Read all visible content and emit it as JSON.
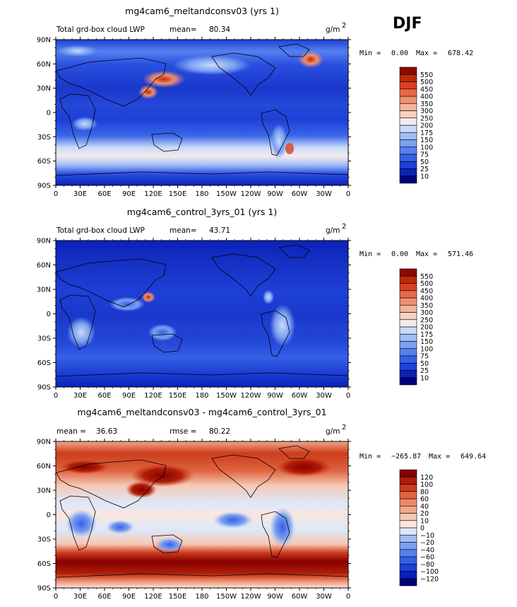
{
  "season_label": "DJF",
  "units": "g/m",
  "units_sup": "2",
  "lat_ticks": [
    "90N",
    "60N",
    "30N",
    "0",
    "30S",
    "60S",
    "90S"
  ],
  "lon_ticks": [
    "0",
    "30E",
    "60E",
    "90E",
    "120E",
    "150E",
    "180",
    "150W",
    "120W",
    "90W",
    "60W",
    "30W",
    "0"
  ],
  "chart_data": [
    {
      "type": "heatmap",
      "title": "mg4cam6_meltandconsv03 (yrs 1)",
      "left_label": "Total grd-box cloud LWP",
      "stat_label": "mean=",
      "stat_value": "80.34",
      "min_label": "Min =",
      "min_value": "0.00",
      "max_label": "Max =",
      "max_value": "678.42",
      "colorbar_levels": [
        "10",
        "25",
        "50",
        "75",
        "100",
        "150",
        "175",
        "200",
        "250",
        "300",
        "350",
        "400",
        "450",
        "500",
        "550"
      ],
      "colorbar_colors": [
        "#00007a",
        "#0a22b8",
        "#1e40d6",
        "#3560e6",
        "#5580ee",
        "#7aa0f2",
        "#a0bef6",
        "#c8daf8",
        "#f4ecec",
        "#f6d2c0",
        "#f4b49a",
        "#f09070",
        "#e8684a",
        "#dc4020",
        "#c02808",
        "#8a0a00"
      ],
      "xlim": [
        0,
        360
      ],
      "ylim": [
        -90,
        90
      ]
    },
    {
      "type": "heatmap",
      "title": "mg4cam6_control_3yrs_01 (yrs 1)",
      "left_label": "Total grd-box cloud LWP",
      "stat_label": "mean=",
      "stat_value": "43.71",
      "min_label": "Min =",
      "min_value": "0.00",
      "max_label": "Max =",
      "max_value": "571.46",
      "colorbar_levels": [
        "10",
        "25",
        "50",
        "75",
        "100",
        "150",
        "175",
        "200",
        "250",
        "300",
        "350",
        "400",
        "450",
        "500",
        "550"
      ],
      "colorbar_colors": [
        "#00007a",
        "#0a22b8",
        "#1e40d6",
        "#3560e6",
        "#5580ee",
        "#7aa0f2",
        "#a0bef6",
        "#c8daf8",
        "#f4ecec",
        "#f6d2c0",
        "#f4b49a",
        "#f09070",
        "#e8684a",
        "#dc4020",
        "#c02808",
        "#8a0a00"
      ],
      "xlim": [
        0,
        360
      ],
      "ylim": [
        -90,
        90
      ]
    },
    {
      "type": "heatmap",
      "title": "mg4cam6_meltandconsv03 - mg4cam6_control_3yrs_01",
      "left_label": "mean =",
      "left_value": "36.63",
      "stat_label": "rmse =",
      "stat_value": "80.22",
      "min_label": "Min =",
      "min_value": "−265.87",
      "max_label": "Max =",
      "max_value": "649.64",
      "colorbar_levels": [
        "−120",
        "−100",
        "−80",
        "−60",
        "−40",
        "−20",
        "−10",
        "0",
        "10",
        "20",
        "40",
        "60",
        "80",
        "100",
        "120"
      ],
      "colorbar_colors": [
        "#00007a",
        "#0a22b8",
        "#1e40d6",
        "#3560e6",
        "#5580ee",
        "#7aa0f2",
        "#a0bef6",
        "#dce8fa",
        "#fbe6e0",
        "#f6c8b4",
        "#f2a88c",
        "#ec8866",
        "#e06440",
        "#cc3c1c",
        "#b01e08",
        "#880000"
      ],
      "xlim": [
        0,
        360
      ],
      "ylim": [
        -90,
        90
      ]
    }
  ]
}
